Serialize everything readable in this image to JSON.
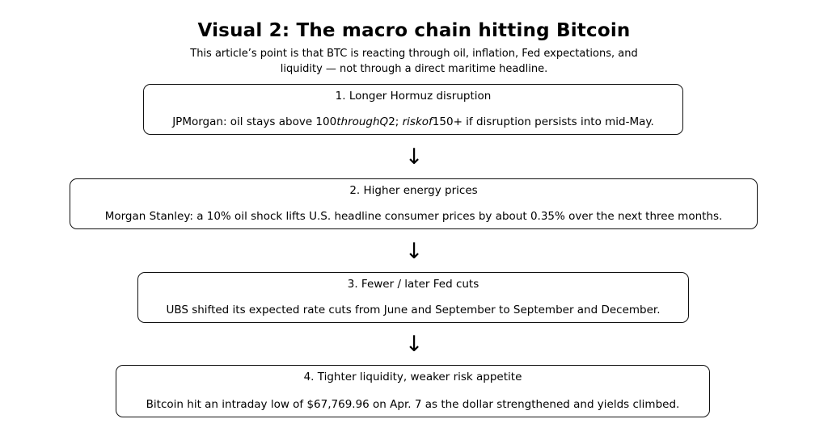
{
  "title": "Visual 2: The macro chain hitting Bitcoin",
  "subtitle": {
    "line1": "This article’s point is that BTC is reacting through oil, inflation, Fed expectations, and",
    "line2": "liquidity — not through a direct maritime headline."
  },
  "arrow_glyph": "↓",
  "boxes": [
    {
      "heading": "1. Longer Hormuz disruption",
      "body_segments": [
        {
          "text": "JPMorgan: oil stays above 100",
          "style": "normal"
        },
        {
          "text": "throughQ",
          "style": "italic"
        },
        {
          "text": "2; ",
          "style": "normal"
        },
        {
          "text": "riskof",
          "style": "italic"
        },
        {
          "text": "150+ if disruption persists into mid-May.",
          "style": "normal"
        }
      ]
    },
    {
      "heading": "2. Higher energy prices",
      "body": "Morgan Stanley: a 10% oil shock lifts U.S. headline consumer prices by about 0.35% over the next three months."
    },
    {
      "heading": "3. Fewer / later Fed cuts",
      "body": "UBS shifted its expected rate cuts from June and September to September and December."
    },
    {
      "heading": "4. Tighter liquidity, weaker risk appetite",
      "body": "Bitcoin hit an intraday low of $67,769.96 on Apr. 7 as the dollar strengthened and yields climbed."
    }
  ],
  "colors": {
    "background": "#ffffff",
    "text": "#000000",
    "box_border": "#111111"
  }
}
